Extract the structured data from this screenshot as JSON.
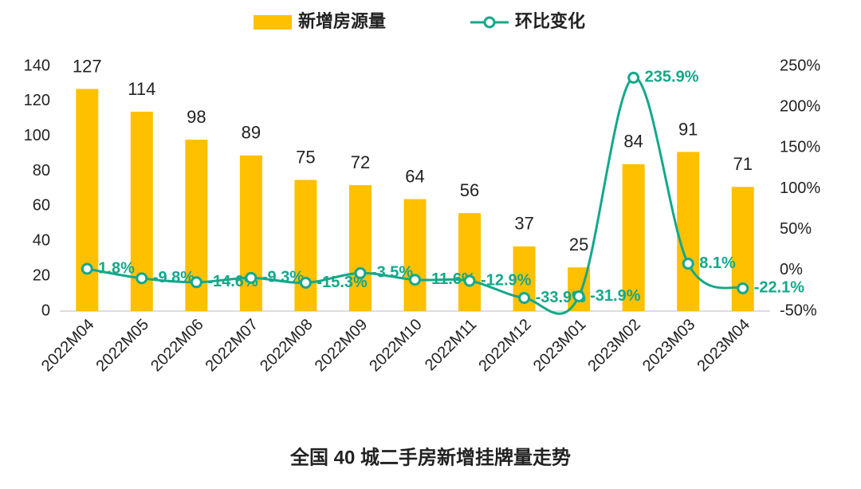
{
  "chart_data": {
    "type": "bar_line",
    "title": "全国 40 城二手房新增挂牌量走势",
    "categories": [
      "2022M04",
      "2022M05",
      "2022M06",
      "2022M07",
      "2022M08",
      "2022M09",
      "2022M10",
      "2022M11",
      "2022M12",
      "2023M01",
      "2023M02",
      "2023M03",
      "2023M04"
    ],
    "series": [
      {
        "name": "新增房源量",
        "type": "bar",
        "color": "#FFC000",
        "values": [
          127,
          114,
          98,
          89,
          75,
          72,
          64,
          56,
          37,
          25,
          84,
          91,
          71
        ]
      },
      {
        "name": "环比变化",
        "type": "line",
        "axis": "y2",
        "color": "#14A88A",
        "values": [
          1.8,
          -9.8,
          -14.6,
          -9.3,
          -15.3,
          -3.5,
          -11.6,
          -12.9,
          -33.9,
          -31.9,
          235.9,
          8.1,
          -22.1
        ],
        "value_labels": [
          "1.8%",
          "-9.8%",
          "-14.6%",
          "-9.3%",
          "-15.3%",
          "-3.5%",
          "-11.6%",
          "-12.9%",
          "-33.9%",
          "-31.9%",
          "235.9%",
          "8.1%",
          "-22.1%"
        ]
      }
    ],
    "ylim": [
      0,
      140
    ],
    "yticks": [
      0,
      20,
      40,
      60,
      80,
      100,
      120,
      140
    ],
    "y2lim": [
      -50,
      250
    ],
    "y2ticks": [
      {
        "value": -50,
        "label": "-50%"
      },
      {
        "value": 0,
        "label": "0%"
      },
      {
        "value": 50,
        "label": "50%"
      },
      {
        "value": 100,
        "label": "100%"
      },
      {
        "value": 150,
        "label": "150%"
      },
      {
        "value": 200,
        "label": "200%"
      },
      {
        "value": 250,
        "label": "250%"
      }
    ]
  }
}
